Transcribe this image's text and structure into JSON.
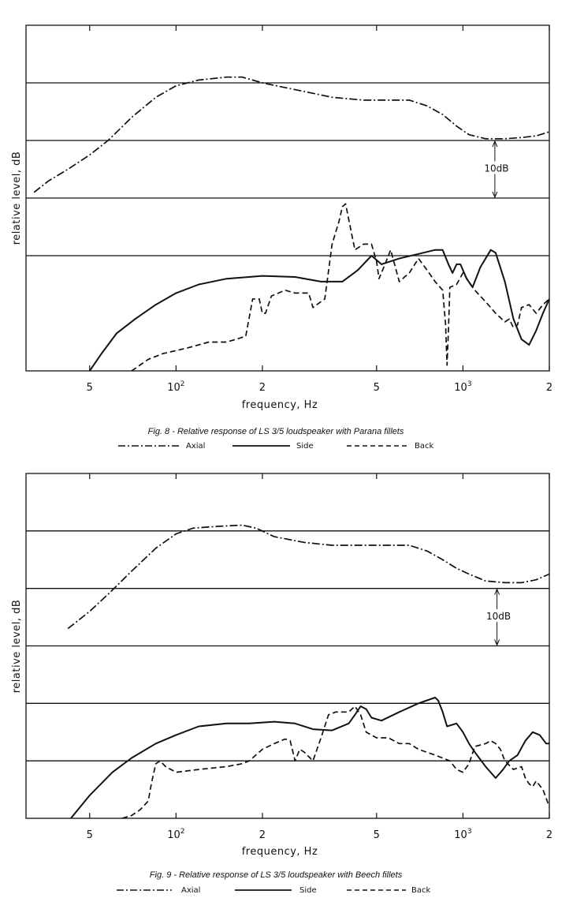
{
  "chart_data": [
    {
      "type": "line",
      "caption": "Fig. 8 - Relative response of LS 3/5 loudspeaker with Parana fillets",
      "xlabel": "frequency, Hz",
      "ylabel": "relative level, dB",
      "x_scale": "log",
      "xlim": [
        30,
        2000
      ],
      "tick_labels": [
        {
          "x": 50,
          "base": "5",
          "sup": ""
        },
        {
          "x": 100,
          "base": "10",
          "sup": "2"
        },
        {
          "x": 200,
          "base": "2",
          "sup": ""
        },
        {
          "x": 500,
          "base": "5",
          "sup": ""
        },
        {
          "x": 1000,
          "base": "10",
          "sup": "3"
        },
        {
          "x": 2000,
          "base": "2",
          "sup": ""
        }
      ],
      "minor_ticks": [
        50,
        100,
        200,
        500,
        1000,
        2000
      ],
      "ylim": [
        0,
        60
      ],
      "grid_y": [
        20,
        30,
        40,
        50
      ],
      "scale_annotation": {
        "label": "10dB",
        "x": 1300,
        "y_from": 30,
        "y_to": 40
      },
      "legend": [
        "Axial",
        "Side",
        "Back"
      ],
      "series": [
        {
          "name": "Axial",
          "style": "dashdot",
          "points": [
            [
              32,
              31
            ],
            [
              36,
              33
            ],
            [
              42,
              35
            ],
            [
              50,
              37.5
            ],
            [
              58,
              40
            ],
            [
              70,
              44
            ],
            [
              85,
              47.5
            ],
            [
              100,
              49.5
            ],
            [
              120,
              50.5
            ],
            [
              150,
              51
            ],
            [
              170,
              51
            ],
            [
              200,
              50
            ],
            [
              250,
              49
            ],
            [
              350,
              47.5
            ],
            [
              450,
              47
            ],
            [
              550,
              47
            ],
            [
              650,
              47
            ],
            [
              750,
              46
            ],
            [
              850,
              44.5
            ],
            [
              950,
              42.5
            ],
            [
              1050,
              41
            ],
            [
              1200,
              40.3
            ],
            [
              1400,
              40.3
            ],
            [
              1600,
              40.5
            ],
            [
              1800,
              40.8
            ],
            [
              2000,
              41.5
            ]
          ]
        },
        {
          "name": "Side",
          "style": "solid",
          "points": [
            [
              50,
              0
            ],
            [
              55,
              3
            ],
            [
              62,
              6.5
            ],
            [
              72,
              9
            ],
            [
              85,
              11.5
            ],
            [
              100,
              13.5
            ],
            [
              120,
              15
            ],
            [
              150,
              16
            ],
            [
              200,
              16.5
            ],
            [
              260,
              16.3
            ],
            [
              320,
              15.5
            ],
            [
              380,
              15.5
            ],
            [
              430,
              17.5
            ],
            [
              480,
              20
            ],
            [
              520,
              18.5
            ],
            [
              600,
              19.5
            ],
            [
              700,
              20.3
            ],
            [
              800,
              21
            ],
            [
              850,
              21
            ],
            [
              890,
              18.5
            ],
            [
              920,
              17
            ],
            [
              950,
              18.5
            ],
            [
              980,
              18.5
            ],
            [
              1030,
              16
            ],
            [
              1080,
              14.5
            ],
            [
              1150,
              18
            ],
            [
              1250,
              21
            ],
            [
              1300,
              20.5
            ],
            [
              1400,
              15.5
            ],
            [
              1500,
              9
            ],
            [
              1600,
              5.5
            ],
            [
              1700,
              4.5
            ],
            [
              1800,
              7
            ],
            [
              1900,
              10
            ],
            [
              2000,
              12.5
            ]
          ]
        },
        {
          "name": "Back",
          "style": "dashed",
          "points": [
            [
              70,
              0
            ],
            [
              80,
              2
            ],
            [
              90,
              3
            ],
            [
              110,
              4
            ],
            [
              130,
              5
            ],
            [
              150,
              5
            ],
            [
              175,
              6
            ],
            [
              185,
              12.5
            ],
            [
              195,
              12.5
            ],
            [
              200,
              10
            ],
            [
              205,
              10
            ],
            [
              215,
              13
            ],
            [
              240,
              14
            ],
            [
              260,
              13.5
            ],
            [
              290,
              13.5
            ],
            [
              300,
              11
            ],
            [
              330,
              12.5
            ],
            [
              350,
              22
            ],
            [
              370,
              26
            ],
            [
              380,
              28.5
            ],
            [
              390,
              29
            ],
            [
              420,
              21
            ],
            [
              450,
              22
            ],
            [
              480,
              22
            ],
            [
              500,
              19
            ],
            [
              510,
              16
            ],
            [
              530,
              18
            ],
            [
              560,
              21
            ],
            [
              600,
              15.5
            ],
            [
              650,
              17
            ],
            [
              700,
              19.5
            ],
            [
              750,
              17.5
            ],
            [
              800,
              15.5
            ],
            [
              850,
              14
            ],
            [
              870,
              8
            ],
            [
              880,
              1
            ],
            [
              890,
              7
            ],
            [
              900,
              14.5
            ],
            [
              950,
              15
            ],
            [
              1000,
              17
            ],
            [
              1100,
              14
            ],
            [
              1200,
              12
            ],
            [
              1300,
              10
            ],
            [
              1400,
              8.5
            ],
            [
              1450,
              9
            ],
            [
              1500,
              7.5
            ],
            [
              1550,
              8
            ],
            [
              1600,
              11
            ],
            [
              1700,
              11.5
            ],
            [
              1800,
              10
            ],
            [
              1900,
              11.5
            ],
            [
              2000,
              12.5
            ]
          ]
        }
      ]
    },
    {
      "type": "line",
      "caption": "Fig. 9 - Relative response of LS 3/5 loudspeaker with Beech fillets",
      "xlabel": "frequency, Hz",
      "ylabel": "relative level, dB",
      "x_scale": "log",
      "xlim": [
        30,
        2000
      ],
      "tick_labels": [
        {
          "x": 50,
          "base": "5",
          "sup": ""
        },
        {
          "x": 100,
          "base": "10",
          "sup": "2"
        },
        {
          "x": 200,
          "base": "2",
          "sup": ""
        },
        {
          "x": 500,
          "base": "5",
          "sup": ""
        },
        {
          "x": 1000,
          "base": "10",
          "sup": "3"
        },
        {
          "x": 2000,
          "base": "2",
          "sup": ""
        }
      ],
      "minor_ticks": [
        50,
        100,
        200,
        500,
        1000,
        2000
      ],
      "ylim": [
        0,
        60
      ],
      "grid_y": [
        10,
        20,
        30,
        40,
        50
      ],
      "scale_annotation": {
        "label": "10dB",
        "x": 1400,
        "y_from": 30,
        "y_to": 40
      },
      "legend": [
        "Axial",
        "Side",
        "Back"
      ],
      "series": [
        {
          "name": "Axial",
          "style": "dashdot",
          "points": [
            [
              42,
              33
            ],
            [
              50,
              36
            ],
            [
              58,
              39
            ],
            [
              70,
              43
            ],
            [
              85,
              47
            ],
            [
              100,
              49.5
            ],
            [
              115,
              50.5
            ],
            [
              140,
              50.8
            ],
            [
              170,
              51
            ],
            [
              190,
              50.5
            ],
            [
              220,
              49
            ],
            [
              280,
              48
            ],
            [
              350,
              47.5
            ],
            [
              450,
              47.5
            ],
            [
              550,
              47.5
            ],
            [
              650,
              47.5
            ],
            [
              750,
              46.5
            ],
            [
              850,
              45
            ],
            [
              950,
              43.5
            ],
            [
              1050,
              42.5
            ],
            [
              1200,
              41.3
            ],
            [
              1400,
              41
            ],
            [
              1600,
              41
            ],
            [
              1800,
              41.5
            ],
            [
              2000,
              42.5
            ]
          ]
        },
        {
          "name": "Side",
          "style": "solid",
          "points": [
            [
              43,
              0
            ],
            [
              50,
              4
            ],
            [
              60,
              8
            ],
            [
              70,
              10.5
            ],
            [
              85,
              13
            ],
            [
              100,
              14.5
            ],
            [
              120,
              16
            ],
            [
              150,
              16.5
            ],
            [
              180,
              16.5
            ],
            [
              220,
              16.8
            ],
            [
              260,
              16.5
            ],
            [
              300,
              15.5
            ],
            [
              350,
              15.3
            ],
            [
              400,
              16.5
            ],
            [
              420,
              18
            ],
            [
              440,
              19.5
            ],
            [
              460,
              19
            ],
            [
              480,
              17.5
            ],
            [
              520,
              17
            ],
            [
              600,
              18.5
            ],
            [
              700,
              20
            ],
            [
              800,
              21
            ],
            [
              820,
              20.5
            ],
            [
              850,
              18.5
            ],
            [
              880,
              16
            ],
            [
              950,
              16.5
            ],
            [
              1000,
              15
            ],
            [
              1050,
              13
            ],
            [
              1100,
              11.5
            ],
            [
              1200,
              9
            ],
            [
              1300,
              7
            ],
            [
              1380,
              8.5
            ],
            [
              1450,
              10
            ],
            [
              1550,
              11
            ],
            [
              1650,
              13.5
            ],
            [
              1750,
              15
            ],
            [
              1850,
              14.5
            ],
            [
              1950,
              13
            ],
            [
              2000,
              13
            ]
          ]
        },
        {
          "name": "Back",
          "style": "dashed",
          "points": [
            [
              65,
              0
            ],
            [
              70,
              0.5
            ],
            [
              75,
              1.5
            ],
            [
              80,
              3
            ],
            [
              82,
              6
            ],
            [
              85,
              9.5
            ],
            [
              88,
              10
            ],
            [
              92,
              9
            ],
            [
              100,
              8
            ],
            [
              120,
              8.5
            ],
            [
              150,
              9
            ],
            [
              170,
              9.5
            ],
            [
              180,
              10
            ],
            [
              200,
              12
            ],
            [
              220,
              13
            ],
            [
              240,
              13.8
            ],
            [
              250,
              13.5
            ],
            [
              260,
              10
            ],
            [
              270,
              12
            ],
            [
              280,
              11.5
            ],
            [
              300,
              10
            ],
            [
              320,
              14
            ],
            [
              340,
              18
            ],
            [
              360,
              18.5
            ],
            [
              400,
              18.5
            ],
            [
              420,
              19.5
            ],
            [
              440,
              18
            ],
            [
              460,
              15
            ],
            [
              500,
              14
            ],
            [
              550,
              14
            ],
            [
              600,
              13
            ],
            [
              650,
              13
            ],
            [
              700,
              12
            ],
            [
              800,
              11
            ],
            [
              900,
              10
            ],
            [
              950,
              8.5
            ],
            [
              1000,
              8
            ],
            [
              1050,
              9.5
            ],
            [
              1100,
              12.5
            ],
            [
              1200,
              13
            ],
            [
              1250,
              13.5
            ],
            [
              1300,
              13
            ],
            [
              1350,
              12
            ],
            [
              1400,
              10
            ],
            [
              1500,
              8.5
            ],
            [
              1600,
              9
            ],
            [
              1650,
              7
            ],
            [
              1700,
              6
            ],
            [
              1750,
              5.5
            ],
            [
              1800,
              6.5
            ],
            [
              1900,
              5
            ],
            [
              2000,
              2
            ]
          ]
        }
      ]
    }
  ]
}
